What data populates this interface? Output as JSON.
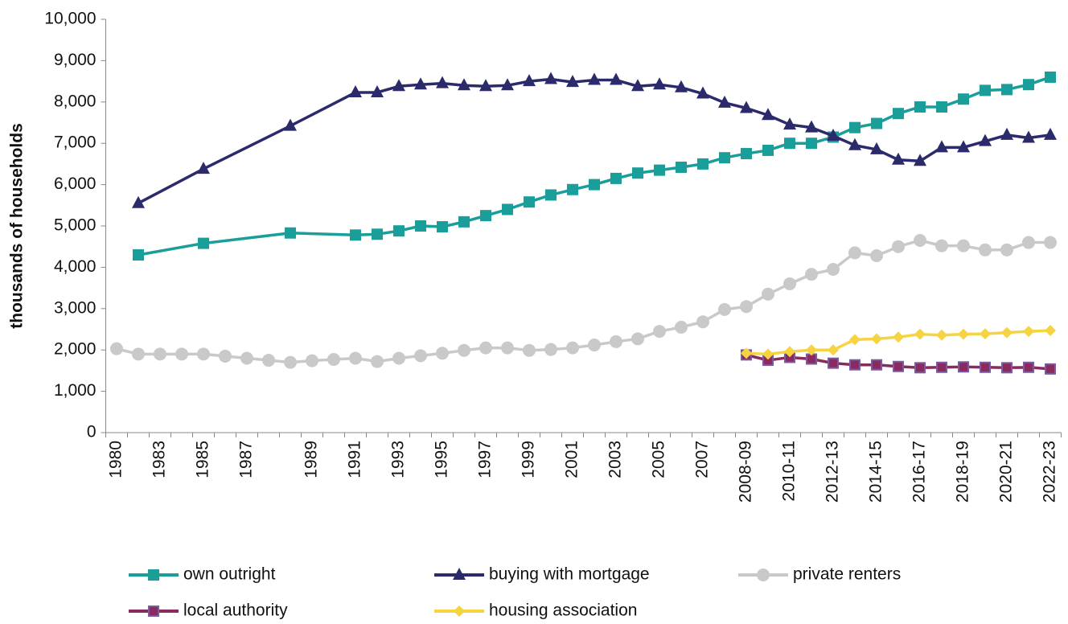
{
  "chart_data": {
    "type": "line",
    "y_label": "thousands of households",
    "categories": [
      "1980",
      null,
      "1983",
      null,
      "1985",
      null,
      "1987",
      null,
      null,
      "1989",
      null,
      "1991",
      null,
      "1993",
      null,
      "1995",
      null,
      "1997",
      null,
      "1999",
      null,
      "2001",
      null,
      "2003",
      null,
      "2005",
      null,
      "2007",
      null,
      "2008-09",
      null,
      "2010-11",
      null,
      "2012-13",
      null,
      "2014-15",
      null,
      "2016-17",
      null,
      "2018-19",
      null,
      "2020-21",
      null,
      "2022-23"
    ],
    "span_gaps": true,
    "ylim": [
      0,
      10000
    ],
    "yticks": [
      0,
      {
        "value": 1000,
        "label": "1,000"
      },
      {
        "value": 2000,
        "label": "2,000"
      },
      {
        "value": 3000,
        "label": "3,000"
      },
      {
        "value": 4000,
        "label": "4,000"
      },
      {
        "value": 5000,
        "label": "5,000"
      },
      {
        "value": 6000,
        "label": "6,000"
      },
      {
        "value": 7000,
        "label": "7,000"
      },
      {
        "value": 8000,
        "label": "8,000"
      },
      {
        "value": 9000,
        "label": "9,000"
      },
      {
        "value": 10000,
        "label": "10,000"
      }
    ],
    "legend": "bottom",
    "series": [
      {
        "name": "own outright",
        "color": "#1a9e9a",
        "marker": "square",
        "values": [
          null,
          4300,
          null,
          null,
          4580,
          null,
          null,
          null,
          4830,
          null,
          null,
          4780,
          4800,
          4880,
          5000,
          4980,
          5100,
          5250,
          5400,
          5580,
          5750,
          5880,
          6000,
          6150,
          6280,
          6350,
          6420,
          6500,
          6650,
          6750,
          6830,
          7000,
          7000,
          7150,
          7380,
          7480,
          7720,
          7880,
          7880,
          8070,
          8280,
          8300,
          8420,
          8600
        ]
      },
      {
        "name": "buying with mortgage",
        "color": "#2b2a6b",
        "marker": "triangle",
        "values": [
          null,
          5550,
          null,
          null,
          6380,
          null,
          null,
          null,
          7420,
          null,
          null,
          8230,
          8230,
          8380,
          8420,
          8450,
          8400,
          8380,
          8400,
          8500,
          8550,
          8480,
          8530,
          8530,
          8380,
          8420,
          8350,
          8200,
          7980,
          7850,
          7680,
          7450,
          7380,
          7180,
          6950,
          6850,
          6600,
          6570,
          6900,
          6900,
          7050,
          7200,
          7130,
          7200
        ]
      },
      {
        "name": "private renters",
        "color": "#c9c9c9",
        "marker": "circle",
        "values": [
          2030,
          1900,
          1900,
          1900,
          1900,
          1850,
          1800,
          1750,
          1700,
          1740,
          1770,
          1800,
          1720,
          1800,
          1860,
          1920,
          1990,
          2050,
          2050,
          1990,
          2010,
          2050,
          2120,
          2200,
          2270,
          2450,
          2550,
          2680,
          2980,
          3050,
          3350,
          3600,
          3830,
          3950,
          4350,
          4280,
          4500,
          4650,
          4520,
          4520,
          4420,
          4420,
          4600,
          4600
        ]
      },
      {
        "name": "local authority",
        "color": "#8b2a5e",
        "marker": "square-outline",
        "values": [
          null,
          null,
          null,
          null,
          null,
          null,
          null,
          null,
          null,
          null,
          null,
          null,
          null,
          null,
          null,
          null,
          null,
          null,
          null,
          null,
          null,
          null,
          null,
          null,
          null,
          null,
          null,
          null,
          null,
          1880,
          1750,
          1820,
          1780,
          1680,
          1640,
          1640,
          1600,
          1570,
          1580,
          1590,
          1580,
          1570,
          1580,
          1540
        ]
      },
      {
        "name": "housing association",
        "color": "#f6d441",
        "marker": "diamond",
        "values": [
          null,
          null,
          null,
          null,
          null,
          null,
          null,
          null,
          null,
          null,
          null,
          null,
          null,
          null,
          null,
          null,
          null,
          null,
          null,
          null,
          null,
          null,
          null,
          null,
          null,
          null,
          null,
          null,
          null,
          1920,
          1900,
          1960,
          2000,
          2000,
          2250,
          2270,
          2310,
          2380,
          2360,
          2380,
          2390,
          2420,
          2450,
          2470
        ]
      }
    ]
  }
}
